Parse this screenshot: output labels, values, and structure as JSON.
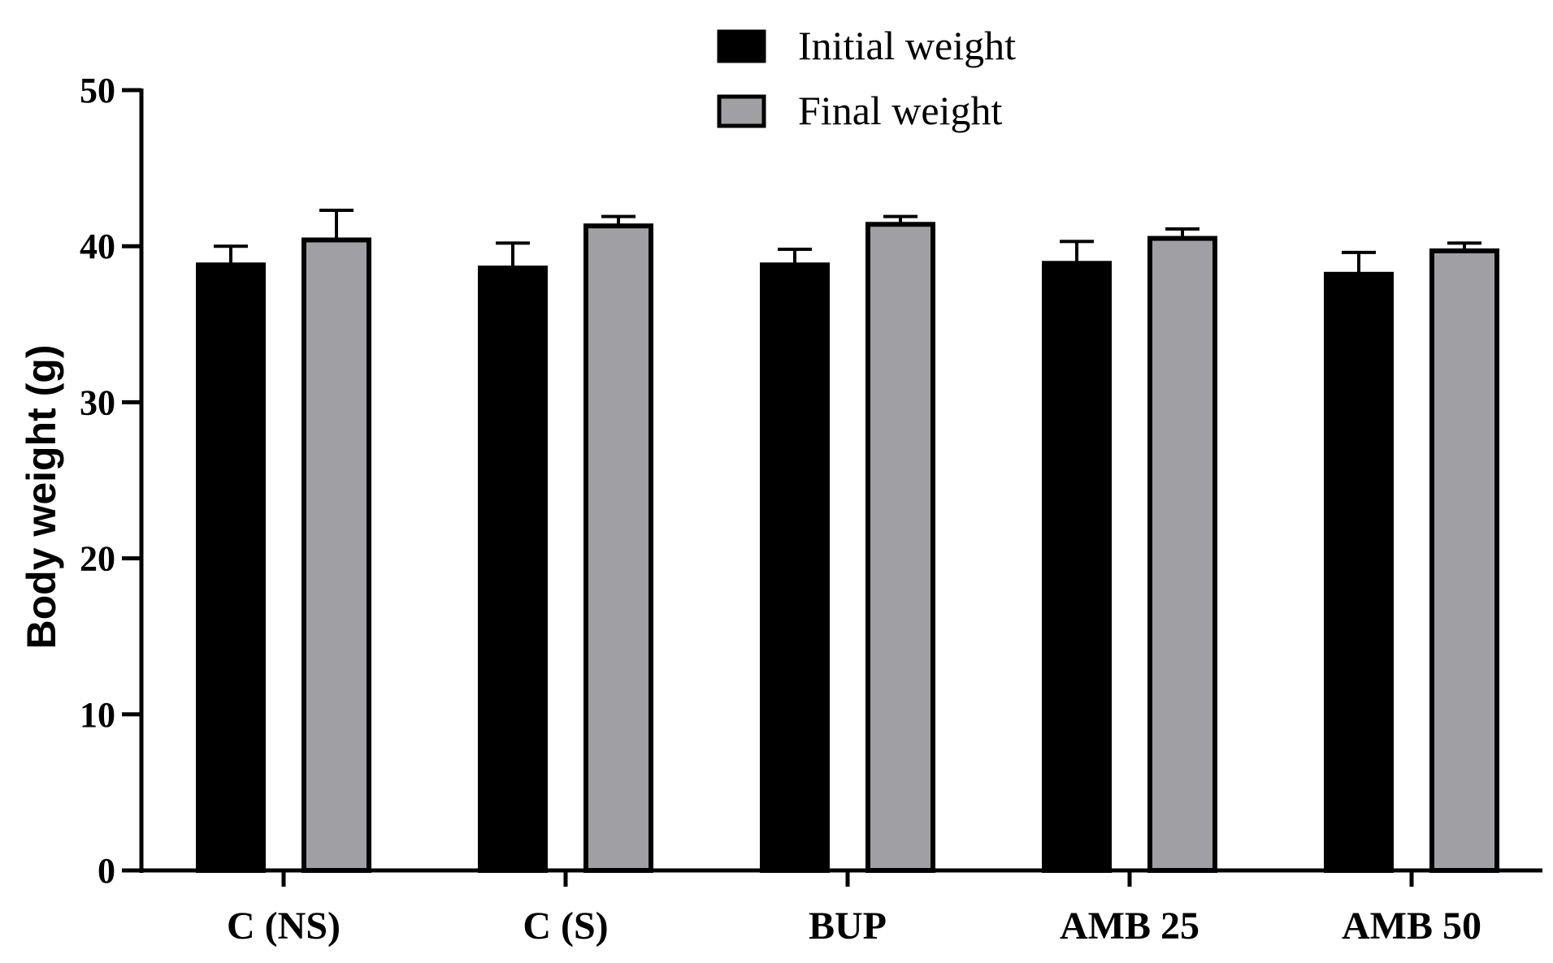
{
  "chart_data": {
    "type": "bar",
    "title": "",
    "xlabel": "",
    "ylabel": "Body weight (g)",
    "ylim": [
      0,
      50
    ],
    "yticks": [
      0,
      10,
      20,
      30,
      40,
      50
    ],
    "grid": false,
    "legend_position": "top-center",
    "categories": [
      "C (NS)",
      "C (S)",
      "BUP",
      "AMB 25",
      "AMB 50"
    ],
    "series": [
      {
        "name": "Initial weight",
        "color": "#000000",
        "values": [
          38.8,
          38.6,
          38.8,
          38.9,
          38.2
        ],
        "errors": [
          1.2,
          1.6,
          1.0,
          1.4,
          1.4
        ]
      },
      {
        "name": "Final weight",
        "color": "#a0a0a4",
        "values": [
          40.4,
          41.3,
          41.4,
          40.5,
          39.7
        ],
        "errors": [
          1.9,
          0.6,
          0.5,
          0.6,
          0.5
        ]
      }
    ]
  }
}
